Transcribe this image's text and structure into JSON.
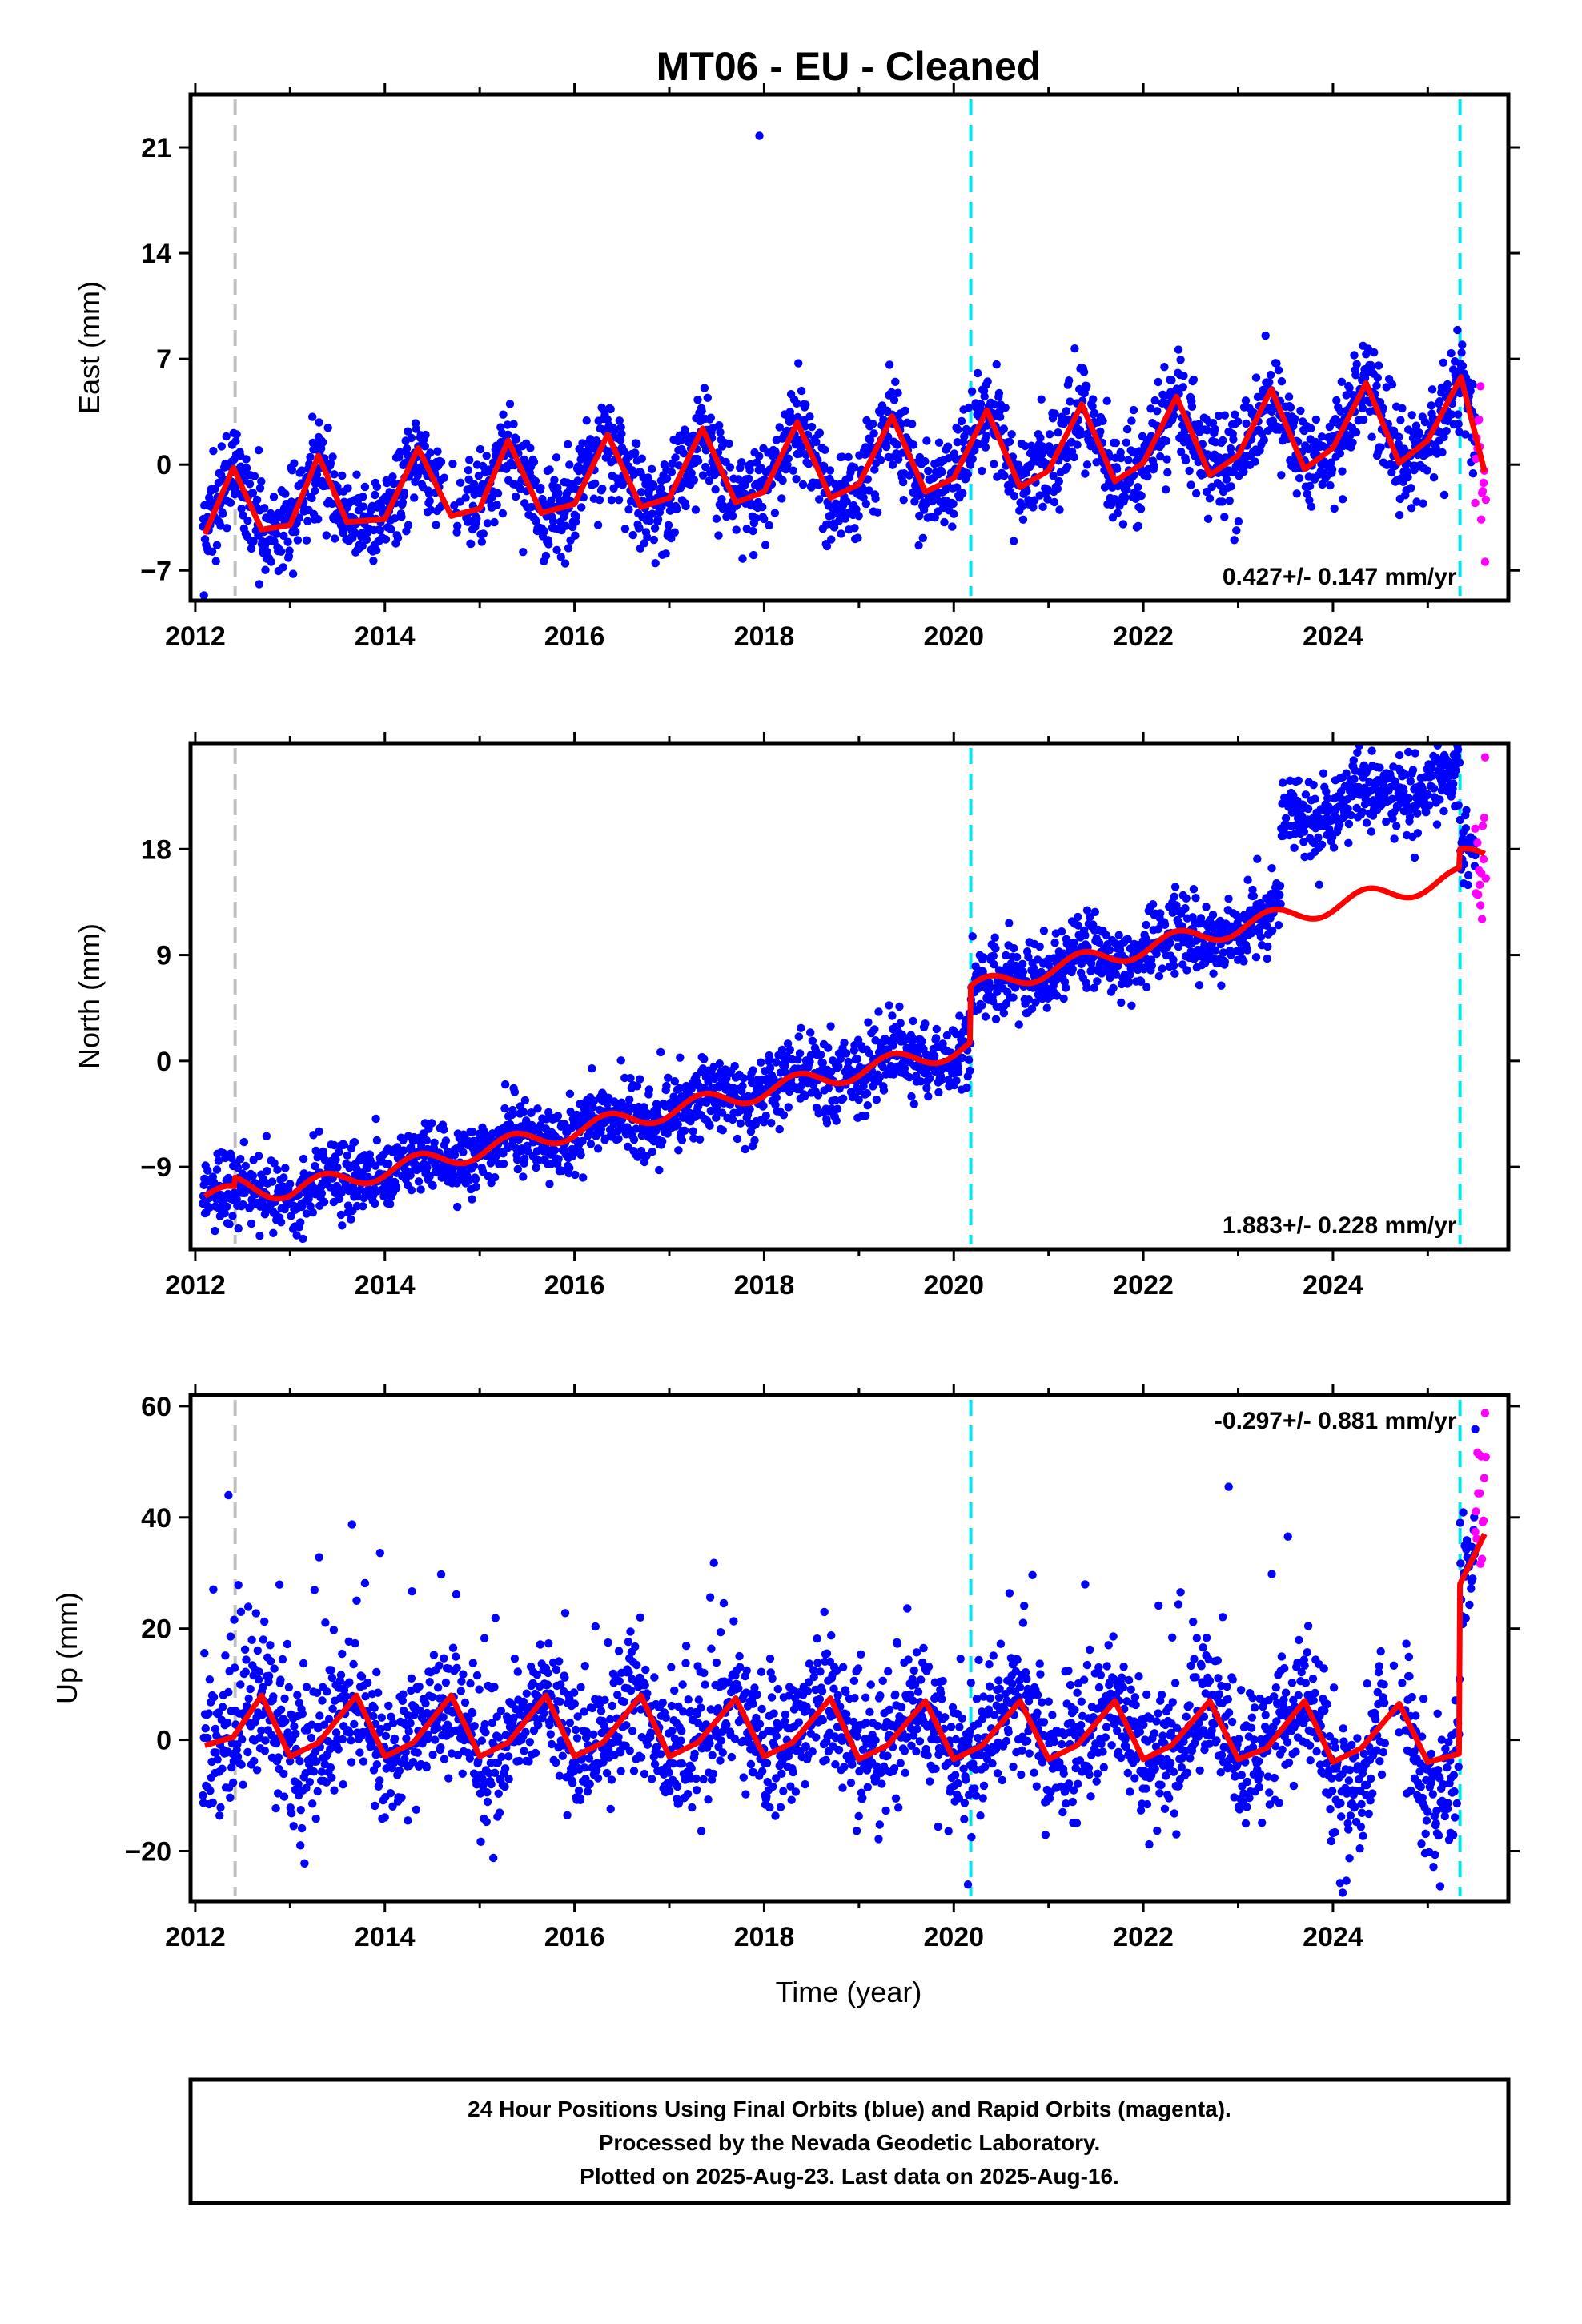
{
  "title": "MT06  - EU - Cleaned",
  "x_axis_label": "Time (year)",
  "footer": {
    "line1": "24 Hour Positions Using Final Orbits (blue) and Rapid Orbits (magenta).",
    "line2": "Processed by the Nevada Geodetic Laboratory.",
    "line3": "Plotted on 2025-Aug-23. Last data on 2025-Aug-16."
  },
  "colors": {
    "final_orbits": "#0000ff",
    "rapid_orbits": "#ff00ff",
    "model_fit": "#ff0000",
    "step_line": "#00e5ee",
    "equipment_line": "#c0c0c0"
  },
  "chart_data": [
    {
      "type": "scatter",
      "title": "",
      "xlabel": "",
      "ylabel": "East (mm)",
      "xlim": [
        2011.95,
        2025.85
      ],
      "ylim": [
        -9,
        24.5
      ],
      "xticks": [
        2012,
        2014,
        2016,
        2018,
        2020,
        2022,
        2024
      ],
      "yticks": [
        -7,
        0,
        7,
        14,
        21
      ],
      "rate_label": "0.427+/- 0.147 mm/yr",
      "rate_position": "bottom-right",
      "vertical_lines": [
        {
          "x": 2012.42,
          "kind": "equipment"
        },
        {
          "x": 2020.18,
          "kind": "step"
        },
        {
          "x": 2025.34,
          "kind": "step"
        }
      ],
      "series": [
        {
          "name": "Final Orbits (blue)",
          "x_start": 2012.08,
          "x_end": 2025.5
        },
        {
          "name": "Rapid Orbits (magenta)",
          "x_start": 2025.5,
          "x_end": 2025.62
        }
      ],
      "model": {
        "x": [
          2012.1,
          2012.4,
          2012.7,
          2013.0,
          2013.3,
          2013.6,
          2014.0,
          2014.35,
          2014.7,
          2015.0,
          2015.3,
          2015.65,
          2016.0,
          2016.35,
          2016.7,
          2017.0,
          2017.35,
          2017.7,
          2018.0,
          2018.35,
          2018.7,
          2019.0,
          2019.35,
          2019.7,
          2020.0,
          2020.35,
          2020.7,
          2021.0,
          2021.35,
          2021.7,
          2022.0,
          2022.35,
          2022.7,
          2023.0,
          2023.35,
          2023.7,
          2024.0,
          2024.35,
          2024.7,
          2025.0,
          2025.35,
          2025.6
        ],
        "y": [
          -4.6,
          -0.2,
          -4.3,
          -4.0,
          0.6,
          -3.8,
          -3.6,
          1.1,
          -3.4,
          -2.9,
          1.6,
          -3.2,
          -2.6,
          2.0,
          -2.8,
          -2.2,
          2.4,
          -2.5,
          -1.8,
          2.8,
          -2.2,
          -1.3,
          3.2,
          -1.8,
          -0.9,
          3.6,
          -1.5,
          -0.4,
          4.0,
          -1.1,
          0.1,
          4.5,
          -0.7,
          0.6,
          5.0,
          -0.3,
          1.1,
          5.4,
          0.1,
          1.6,
          5.8,
          -0.5
        ]
      }
    },
    {
      "type": "scatter",
      "title": "",
      "xlabel": "",
      "ylabel": "North (mm)",
      "xlim": [
        2011.95,
        2025.85
      ],
      "ylim": [
        -16,
        27
      ],
      "xticks": [
        2012,
        2014,
        2016,
        2018,
        2020,
        2022,
        2024
      ],
      "yticks": [
        -9,
        0,
        9,
        18
      ],
      "rate_label": "1.883+/- 0.228 mm/yr",
      "rate_position": "bottom-right",
      "vertical_lines": [
        {
          "x": 2012.42,
          "kind": "equipment"
        },
        {
          "x": 2020.18,
          "kind": "step"
        },
        {
          "x": 2025.34,
          "kind": "step"
        }
      ],
      "series": [
        {
          "name": "Final Orbits (blue)",
          "x_start": 2012.08,
          "x_end": 2025.5
        },
        {
          "name": "Rapid Orbits (magenta)",
          "x_start": 2025.5,
          "x_end": 2025.62
        }
      ],
      "model": {
        "x": [
          2012.1,
          2012.41,
          2012.42,
          2013.0,
          2014.0,
          2015.0,
          2016.0,
          2017.0,
          2018.0,
          2019.0,
          2020.0,
          2020.17,
          2020.18,
          2021.0,
          2022.0,
          2023.0,
          2024.0,
          2025.0,
          2025.33,
          2025.34,
          2025.6
        ],
        "y": [
          -11.5,
          -11.4,
          -10.6,
          -11.0,
          -9.3,
          -7.6,
          -5.9,
          -4.2,
          -2.5,
          -0.8,
          0.9,
          1.2,
          6.0,
          7.8,
          9.6,
          11.4,
          13.2,
          15.0,
          15.6,
          17.2,
          17.6
        ],
        "seasonal_amplitude": 0.8,
        "seasonal_period_years": 1
      },
      "offsets": {
        "blue_shift_2023_45_to_2025_34": 8.5
      }
    },
    {
      "type": "scatter",
      "title": "",
      "xlabel": "Time (year)",
      "ylabel": "Up (mm)",
      "xlim": [
        2011.95,
        2025.85
      ],
      "ylim": [
        -29,
        62
      ],
      "xticks": [
        2012,
        2014,
        2016,
        2018,
        2020,
        2022,
        2024
      ],
      "yticks": [
        -20,
        0,
        20,
        40,
        60
      ],
      "rate_label": "-0.297+/- 0.881 mm/yr",
      "rate_position": "top-right",
      "vertical_lines": [
        {
          "x": 2012.42,
          "kind": "equipment"
        },
        {
          "x": 2020.18,
          "kind": "step"
        },
        {
          "x": 2025.34,
          "kind": "step"
        }
      ],
      "series": [
        {
          "name": "Final Orbits (blue)",
          "x_start": 2012.08,
          "x_end": 2025.5
        },
        {
          "name": "Rapid Orbits (magenta)",
          "x_start": 2025.5,
          "x_end": 2025.62
        }
      ],
      "model": {
        "x": [
          2012.1,
          2012.4,
          2012.7,
          2013.0,
          2013.3,
          2013.7,
          2014.0,
          2014.3,
          2014.7,
          2015.0,
          2015.3,
          2015.7,
          2016.0,
          2016.3,
          2016.7,
          2017.0,
          2017.3,
          2017.7,
          2018.0,
          2018.3,
          2018.7,
          2019.0,
          2019.3,
          2019.7,
          2020.0,
          2020.3,
          2020.7,
          2021.0,
          2021.3,
          2021.7,
          2022.0,
          2022.3,
          2022.7,
          2023.0,
          2023.3,
          2023.7,
          2024.0,
          2024.3,
          2024.7,
          2025.0,
          2025.33,
          2025.34,
          2025.6
        ],
        "y": [
          -1.0,
          0.5,
          8.0,
          -3.0,
          -0.5,
          8.0,
          -3.0,
          -0.5,
          8.0,
          -3.0,
          -0.5,
          8.0,
          -3.0,
          -0.5,
          8.0,
          -3.0,
          -0.5,
          7.5,
          -3.0,
          -0.5,
          7.5,
          -3.5,
          -1.0,
          7.0,
          -3.5,
          -1.0,
          7.0,
          -3.5,
          -1.0,
          7.0,
          -3.5,
          -1.0,
          7.0,
          -3.5,
          -1.5,
          7.0,
          -4.0,
          -1.5,
          6.5,
          -4.0,
          -2.5,
          28.0,
          37.0
        ]
      },
      "outliers": [
        {
          "x": 2012.35,
          "y": 44
        },
        {
          "x": 2022.9,
          "y": 45.5
        },
        {
          "x": 2020.15,
          "y": -26
        }
      ]
    }
  ]
}
